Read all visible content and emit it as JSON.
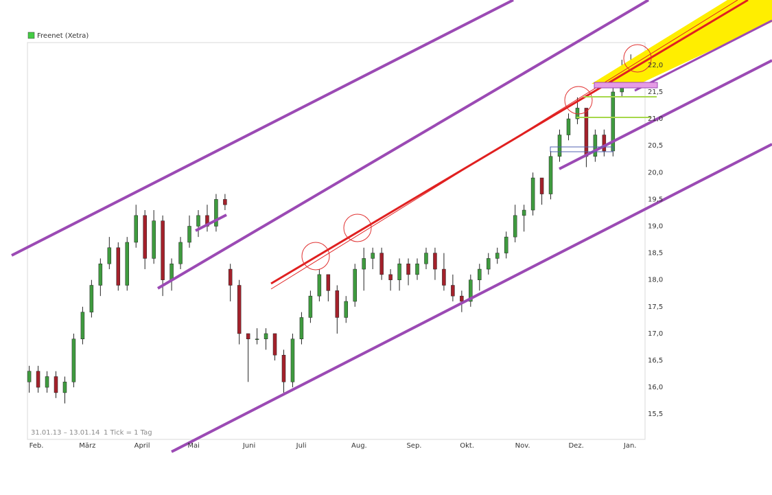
{
  "chart_data": {
    "type": "candlestick",
    "footnote_range": "31.01.13 – 13.01.14",
    "footnote_tick": "1 Tick = 1 Tag",
    "xlim": [
      0,
      347
    ],
    "xticks": [
      {
        "value": 1,
        "label": "Feb."
      },
      {
        "value": 29,
        "label": "März"
      },
      {
        "value": 60,
        "label": "April"
      },
      {
        "value": 90,
        "label": "Mai"
      },
      {
        "value": 121,
        "label": "Juni"
      },
      {
        "value": 151,
        "label": "Juli"
      },
      {
        "value": 182,
        "label": "Aug."
      },
      {
        "value": 213,
        "label": "Sep."
      },
      {
        "value": 243,
        "label": "Okt."
      },
      {
        "value": 274,
        "label": "Nov."
      },
      {
        "value": 304,
        "label": "Dez."
      },
      {
        "value": 335,
        "label": "Jan."
      }
    ],
    "ylim": [
      15.03,
      22.42
    ],
    "yticks": [
      {
        "value": 15.5,
        "label": "15,5"
      },
      {
        "value": 16,
        "label": "16,0"
      },
      {
        "value": 16.5,
        "label": "16,5"
      },
      {
        "value": 17,
        "label": "17,0"
      },
      {
        "value": 17.5,
        "label": "17,5"
      },
      {
        "value": 18,
        "label": "18,0"
      },
      {
        "value": 18.5,
        "label": "18,5"
      },
      {
        "value": 19,
        "label": "19,0"
      },
      {
        "value": 19.5,
        "label": "19,5"
      },
      {
        "value": 20,
        "label": "20,0"
      },
      {
        "value": 20.5,
        "label": "20,5"
      },
      {
        "value": 21,
        "label": "21,0"
      },
      {
        "value": 21.5,
        "label": "21,5"
      },
      {
        "value": 22,
        "label": "22,0"
      }
    ],
    "grid": false,
    "up_color": "#3f9b3f",
    "down_color": "#a3212b",
    "series": [
      {
        "name": "Freenet (Xetra)",
        "color": "#44cc44",
        "x": [
          1,
          6,
          11,
          16,
          21,
          26,
          31,
          36,
          41,
          46,
          51,
          56,
          61,
          66,
          71,
          76,
          81,
          86,
          91,
          96,
          101,
          106,
          111,
          114,
          119,
          124,
          129,
          134,
          139,
          144,
          149,
          154,
          159,
          164,
          169,
          174,
          179,
          184,
          189,
          194,
          199,
          204,
          209,
          214,
          219,
          224,
          229,
          234,
          239,
          244,
          249,
          254,
          259,
          264,
          269,
          274,
          279,
          284,
          289,
          294,
          299,
          304,
          309,
          314,
          319,
          324,
          329,
          334,
          339,
          344
        ],
        "open": [
          16.1,
          16.3,
          16.0,
          16.2,
          15.9,
          16.1,
          16.9,
          17.4,
          17.9,
          18.3,
          18.6,
          17.9,
          18.7,
          19.2,
          18.4,
          19.1,
          18.0,
          18.3,
          18.7,
          19.0,
          19.2,
          19.0,
          19.5,
          18.2,
          17.9,
          17.0,
          16.9,
          16.9,
          17.0,
          16.6,
          16.1,
          16.9,
          17.3,
          17.7,
          18.1,
          17.8,
          17.3,
          17.6,
          18.2,
          18.4,
          18.5,
          18.1,
          18.0,
          18.3,
          18.1,
          18.3,
          18.5,
          18.2,
          17.9,
          17.7,
          17.6,
          18.0,
          18.2,
          18.4,
          18.5,
          18.8,
          19.2,
          19.3,
          19.9,
          19.6,
          20.3,
          20.7,
          21.0,
          21.2,
          20.3,
          20.7,
          20.4,
          21.5,
          21.9,
          21.7
        ],
        "high": [
          16.4,
          16.4,
          16.3,
          16.3,
          16.2,
          17.0,
          17.5,
          18.0,
          18.4,
          18.8,
          18.7,
          18.8,
          19.4,
          19.3,
          19.3,
          19.2,
          18.4,
          18.8,
          19.2,
          19.3,
          19.4,
          19.6,
          19.6,
          18.3,
          18.0,
          17.0,
          17.1,
          17.1,
          17.0,
          16.7,
          17.0,
          17.4,
          17.8,
          18.2,
          18.1,
          17.9,
          17.7,
          18.3,
          18.6,
          18.6,
          18.6,
          18.2,
          18.4,
          18.4,
          18.4,
          18.6,
          18.6,
          18.5,
          18.1,
          17.8,
          18.1,
          18.3,
          18.5,
          18.6,
          18.9,
          19.4,
          19.4,
          20.0,
          19.9,
          20.4,
          20.8,
          21.1,
          21.4,
          21.2,
          20.8,
          20.8,
          21.6,
          22.1,
          22.2,
          22.2
        ],
        "low": [
          15.9,
          15.9,
          15.9,
          15.8,
          15.7,
          16.0,
          16.8,
          17.3,
          17.7,
          18.2,
          17.8,
          17.8,
          18.6,
          18.2,
          18.3,
          17.7,
          17.8,
          18.2,
          18.6,
          18.8,
          18.9,
          18.9,
          19.3,
          17.6,
          16.8,
          16.1,
          16.8,
          16.7,
          16.5,
          15.9,
          16.0,
          16.8,
          17.2,
          17.6,
          17.6,
          17.0,
          17.2,
          17.5,
          17.8,
          18.2,
          18.0,
          17.8,
          17.8,
          17.9,
          18.0,
          18.2,
          18.0,
          17.8,
          17.6,
          17.4,
          17.5,
          17.8,
          18.1,
          18.3,
          18.4,
          18.7,
          18.9,
          19.2,
          19.4,
          19.5,
          20.2,
          20.6,
          20.9,
          20.1,
          20.2,
          20.3,
          20.3,
          21.4,
          21.6,
          21.6
        ],
        "close": [
          16.3,
          16.0,
          16.2,
          15.9,
          16.1,
          16.9,
          17.4,
          17.9,
          18.3,
          18.6,
          17.9,
          18.7,
          19.2,
          18.4,
          19.1,
          18.0,
          18.3,
          18.7,
          19.0,
          19.2,
          19.0,
          19.5,
          19.4,
          17.9,
          17.0,
          16.9,
          16.9,
          17.0,
          16.6,
          16.1,
          16.9,
          17.3,
          17.7,
          18.1,
          17.8,
          17.3,
          17.6,
          18.2,
          18.4,
          18.5,
          18.1,
          18.0,
          18.3,
          18.1,
          18.3,
          18.5,
          18.2,
          17.9,
          17.7,
          17.6,
          18.0,
          18.2,
          18.4,
          18.5,
          18.8,
          19.2,
          19.3,
          19.9,
          19.6,
          20.3,
          20.7,
          21.0,
          21.2,
          20.3,
          20.7,
          20.4,
          21.5,
          21.9,
          21.7,
          22.1
        ]
      }
    ]
  }
}
